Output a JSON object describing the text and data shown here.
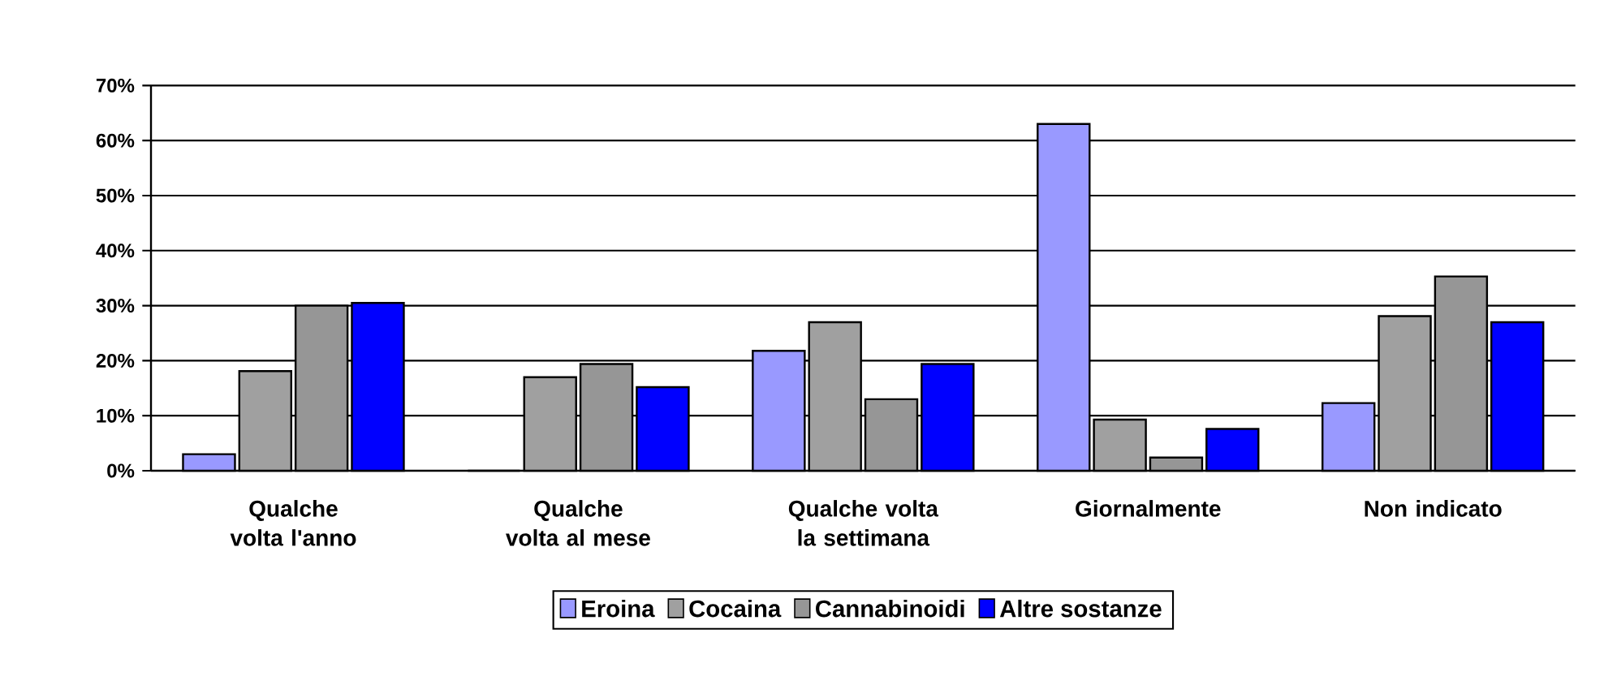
{
  "chart_data": {
    "type": "bar",
    "categories": [
      "Qualche volta l'anno",
      "Qualche volta al mese",
      "Qualche volta la settimana",
      "Giornalmente",
      "Non indicato"
    ],
    "series": [
      {
        "name": "Eroina",
        "color": "#9999ff",
        "values": [
          3,
          0,
          21.8,
          63,
          12.3
        ]
      },
      {
        "name": "Cocaina",
        "color": "#a0a0a0",
        "values": [
          18.1,
          17,
          27,
          9.3,
          28.1
        ]
      },
      {
        "name": "Cannabinoidi",
        "color": "#969696",
        "values": [
          30,
          19.4,
          13,
          2.4,
          35.3
        ]
      },
      {
        "name": "Altre sostanze",
        "color": "#0000ff",
        "values": [
          30.5,
          15.2,
          19.4,
          7.6,
          27
        ]
      }
    ],
    "ylim": [
      0,
      70
    ],
    "yticks": [
      {
        "value": 0,
        "label": "0%"
      },
      {
        "value": 10,
        "label": "10%"
      },
      {
        "value": 20,
        "label": "20%"
      },
      {
        "value": 30,
        "label": "30%"
      },
      {
        "value": 40,
        "label": "40%"
      },
      {
        "value": 50,
        "label": "50%"
      },
      {
        "value": 60,
        "label": "60%"
      },
      {
        "value": 70,
        "label": "70%"
      }
    ],
    "grid": "y",
    "legend": "bottom"
  }
}
